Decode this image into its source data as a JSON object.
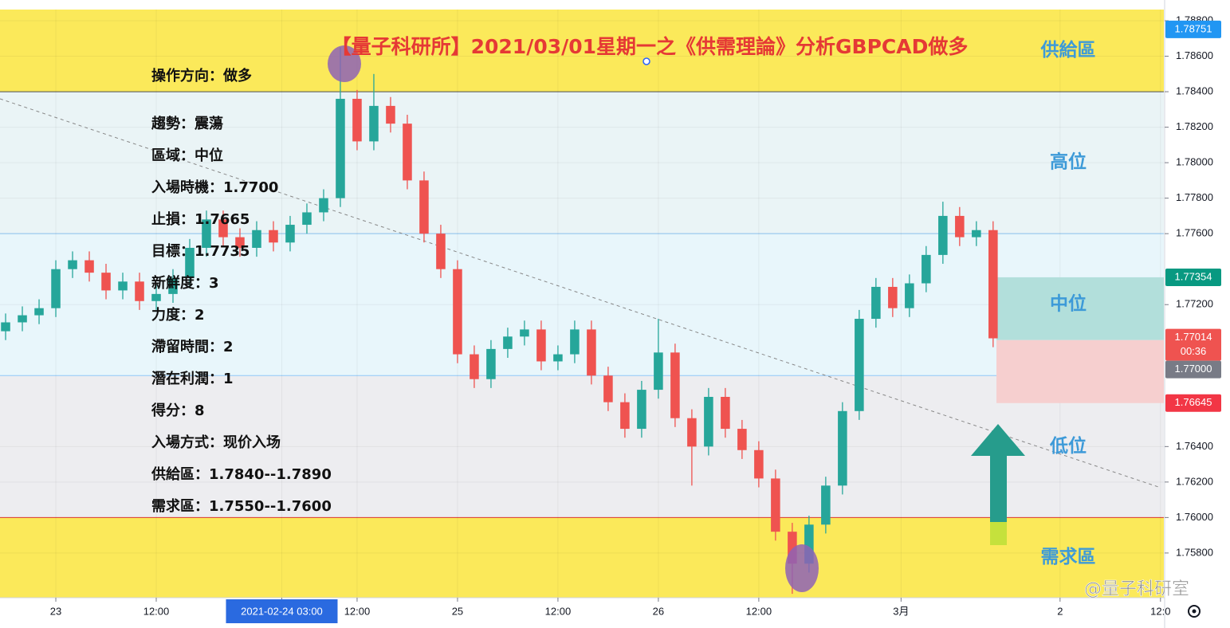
{
  "chart_data": {
    "type": "candlestick",
    "title": "【量子科研所】2021/03/01星期一之《供需理論》分析GBPCAD做多",
    "xlim": [
      -6.67,
      132.4
    ],
    "ylim": [
      1.75548,
      1.78863
    ],
    "grid": true,
    "xticks": [
      {
        "value": 0,
        "label": "23"
      },
      {
        "value": 12,
        "label": "12:00"
      },
      {
        "value": 27,
        "label": "2021-02-24   03:00",
        "highlight": true
      },
      {
        "value": 36,
        "label": "12:00"
      },
      {
        "value": 48,
        "label": "25"
      },
      {
        "value": 60,
        "label": "12:00"
      },
      {
        "value": 72,
        "label": "26"
      },
      {
        "value": 84,
        "label": "12:00"
      },
      {
        "value": 101,
        "label": "3月"
      },
      {
        "value": 120,
        "label": "2"
      },
      {
        "value": 132,
        "label": "12:0"
      }
    ],
    "yticks": [
      {
        "value": 1.788,
        "label": "1.78800"
      },
      {
        "value": 1.786,
        "label": "1.78600"
      },
      {
        "value": 1.784,
        "label": "1.78400"
      },
      {
        "value": 1.782,
        "label": "1.78200"
      },
      {
        "value": 1.78,
        "label": "1.78000"
      },
      {
        "value": 1.778,
        "label": "1.77800"
      },
      {
        "value": 1.776,
        "label": "1.77600"
      },
      {
        "value": 1.772,
        "label": "1.77200"
      },
      {
        "value": 1.764,
        "label": "1.76400"
      },
      {
        "value": 1.762,
        "label": "1.76200"
      },
      {
        "value": 1.76,
        "label": "1.76000"
      },
      {
        "value": 1.758,
        "label": "1.75800"
      }
    ],
    "up_color": "#26a69a",
    "down_color": "#ef5350",
    "candles": {
      "x": [
        -6,
        -4,
        -2,
        0,
        2,
        4,
        6,
        8,
        10,
        12,
        14,
        16,
        18,
        20,
        22,
        24,
        26,
        28,
        30,
        32,
        34,
        36,
        38,
        40,
        42,
        44,
        46,
        48,
        50,
        52,
        54,
        56,
        58,
        60,
        62,
        64,
        66,
        68,
        70,
        72,
        74,
        76,
        78,
        80,
        82,
        84,
        86,
        88,
        90,
        92,
        94,
        96,
        98,
        100,
        102,
        104,
        106,
        108,
        110,
        112
      ],
      "open": [
        1.7705,
        1.771,
        1.7714,
        1.7718,
        1.774,
        1.7745,
        1.7738,
        1.7728,
        1.7733,
        1.7722,
        1.7726,
        1.7735,
        1.7752,
        1.7768,
        1.7758,
        1.7752,
        1.7762,
        1.7755,
        1.7765,
        1.7772,
        1.778,
        1.7836,
        1.7812,
        1.7832,
        1.7822,
        1.779,
        1.776,
        1.774,
        1.7692,
        1.7678,
        1.7695,
        1.7702,
        1.7706,
        1.7688,
        1.7692,
        1.7706,
        1.768,
        1.7665,
        1.765,
        1.7672,
        1.7693,
        1.7656,
        1.764,
        1.7668,
        1.765,
        1.7638,
        1.7622,
        1.7592,
        1.7574,
        1.7596,
        1.7618,
        1.766,
        1.7712,
        1.773,
        1.7718,
        1.7732,
        1.7748,
        1.777,
        1.7758,
        1.7762
      ],
      "high": [
        1.7715,
        1.7719,
        1.7723,
        1.7745,
        1.775,
        1.775,
        1.7743,
        1.7738,
        1.7738,
        1.7731,
        1.774,
        1.7757,
        1.7773,
        1.7773,
        1.7763,
        1.7767,
        1.7767,
        1.777,
        1.7777,
        1.7785,
        1.7865,
        1.7841,
        1.785,
        1.7837,
        1.7827,
        1.7795,
        1.7765,
        1.7745,
        1.7697,
        1.77,
        1.7707,
        1.7711,
        1.7711,
        1.7697,
        1.7711,
        1.7711,
        1.7685,
        1.767,
        1.7677,
        1.7712,
        1.7698,
        1.7661,
        1.7673,
        1.7673,
        1.7655,
        1.7643,
        1.7627,
        1.7597,
        1.7601,
        1.7623,
        1.7665,
        1.7717,
        1.7735,
        1.7735,
        1.7737,
        1.7753,
        1.7778,
        1.7775,
        1.7767,
        1.7767
      ],
      "low": [
        1.77,
        1.7705,
        1.7709,
        1.7713,
        1.7735,
        1.7733,
        1.7723,
        1.7723,
        1.7717,
        1.7717,
        1.7721,
        1.773,
        1.7747,
        1.7753,
        1.7747,
        1.7747,
        1.775,
        1.775,
        1.776,
        1.7767,
        1.7775,
        1.7807,
        1.7807,
        1.7817,
        1.7785,
        1.7755,
        1.7735,
        1.7687,
        1.7673,
        1.7673,
        1.769,
        1.7697,
        1.7683,
        1.7683,
        1.7687,
        1.7675,
        1.766,
        1.7645,
        1.7645,
        1.7667,
        1.7651,
        1.7618,
        1.7635,
        1.7645,
        1.7633,
        1.7617,
        1.7587,
        1.7557,
        1.7569,
        1.7591,
        1.7613,
        1.7655,
        1.7707,
        1.7713,
        1.7713,
        1.7727,
        1.7743,
        1.7753,
        1.7753,
        1.7696
      ],
      "close": [
        1.771,
        1.7714,
        1.7718,
        1.774,
        1.7745,
        1.7738,
        1.7728,
        1.7733,
        1.7722,
        1.7726,
        1.7735,
        1.7752,
        1.7768,
        1.7758,
        1.7752,
        1.7762,
        1.7755,
        1.7765,
        1.7772,
        1.778,
        1.7836,
        1.7812,
        1.7832,
        1.7822,
        1.779,
        1.776,
        1.774,
        1.7692,
        1.7678,
        1.7695,
        1.7702,
        1.7706,
        1.7688,
        1.7692,
        1.7706,
        1.768,
        1.7665,
        1.765,
        1.7672,
        1.7693,
        1.7656,
        1.764,
        1.7668,
        1.765,
        1.7638,
        1.7622,
        1.7592,
        1.7574,
        1.7596,
        1.7618,
        1.766,
        1.7712,
        1.773,
        1.7718,
        1.7732,
        1.7748,
        1.777,
        1.7758,
        1.7762,
        1.7701
      ]
    },
    "zones": [
      {
        "label": "供給區",
        "from": 1.784,
        "to": 1.789,
        "color": "#fbe95a",
        "border": "#555555"
      },
      {
        "label": "高位",
        "from": 1.776,
        "to": 1.784,
        "color": "#eaf4f6",
        "border": "#90caf9"
      },
      {
        "label": "中位",
        "from": 1.768,
        "to": 1.776,
        "color": "#e8f6fb",
        "border": "#90caf9"
      },
      {
        "label": "低位",
        "from": 1.76,
        "to": 1.768,
        "color": "#ededf0",
        "border": "#e53935"
      },
      {
        "label": "需求區",
        "from": 1.755,
        "to": 1.76,
        "color": "#fbe95a",
        "border": "#e53935"
      }
    ],
    "zone_label_color": "#3d9ad8",
    "trendline": {
      "x": [
        -6.67,
        131.9
      ],
      "y": [
        1.7836,
        1.7617
      ],
      "color": "#888888"
    },
    "position": {
      "x": 112.4,
      "target": 1.77354,
      "entry": 1.77,
      "stop": 1.76645,
      "profit_color": "#b2dfdb",
      "loss_color": "#f6cfcf"
    },
    "price_labels": [
      {
        "value": 1.78751,
        "color": "#2196f3"
      },
      {
        "value": 1.77354,
        "color": "#089981"
      },
      {
        "value": 1.77014,
        "color": "#ef5350",
        "sub": "00:36"
      },
      {
        "value": 1.77,
        "label": "1.77000",
        "color": "#787b86"
      },
      {
        "value": 1.76645,
        "color": "#f23645"
      }
    ],
    "notes": [
      "操作方向：做多",
      "趨勢：震蕩",
      "區域：中位",
      "入場時機：1.7700",
      "止損：1.7665",
      "目標：1.7735",
      "新鮮度：3",
      "力度：2",
      "滯留時間：2",
      "潛在利潤：1",
      "得分：8",
      "入場方式：现价入场",
      "供給區：1.7840--1.7890",
      "需求區：1.7550--1.7600"
    ],
    "watermark": "@量子科研室"
  }
}
